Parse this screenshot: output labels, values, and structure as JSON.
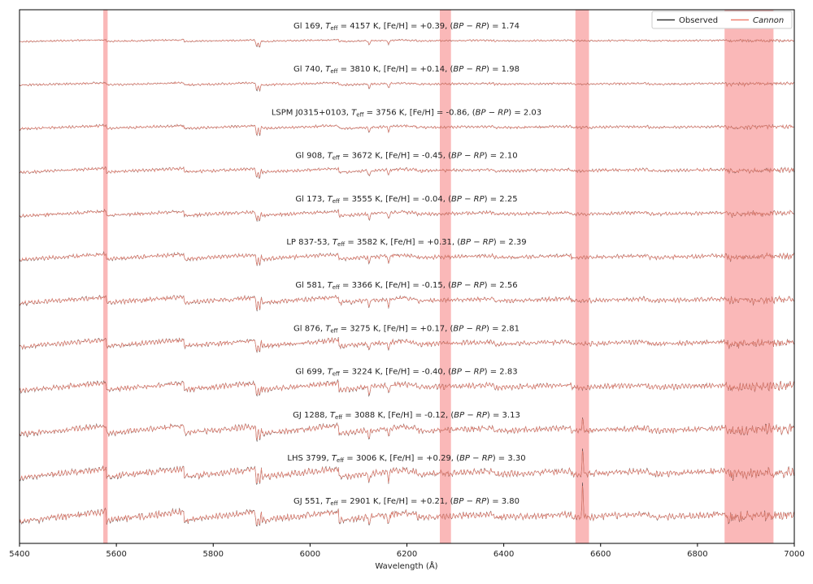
{
  "chart_data": {
    "type": "line",
    "title": "",
    "xlabel": "Wavelength (Å)",
    "ylabel": "",
    "xlim": [
      5400,
      7000
    ],
    "x_ticks": [
      5400,
      5600,
      5800,
      6000,
      6200,
      6400,
      6600,
      6800,
      7000
    ],
    "y_ticks_shown": false,
    "grid": false,
    "legend": {
      "placement": "top-right",
      "entries": [
        {
          "name": "Observed",
          "color": "#333333",
          "italic": false
        },
        {
          "name": "Cannon",
          "color": "#f08070",
          "italic": true
        }
      ]
    },
    "masked_regions": [
      [
        5573,
        5582
      ],
      [
        6268,
        6291
      ],
      [
        6548,
        6576
      ],
      [
        6856,
        6957
      ]
    ],
    "mask_color": "#f8a0a0",
    "features": {
      "absorption_lines": [
        5890,
        5896,
        6122,
        6162
      ],
      "h_alpha": 6563
    },
    "series": [
      {
        "name": "Gl 169",
        "teff": "4157",
        "feh": "+0.39",
        "bprp": "1.74",
        "halpha_emission": 0
      },
      {
        "name": "Gl 740",
        "teff": "3810",
        "feh": "+0.14",
        "bprp": "1.98",
        "halpha_emission": 0
      },
      {
        "name": "LSPM J0315+0103",
        "teff": "3756",
        "feh": "-0.86",
        "bprp": "2.03",
        "halpha_emission": 0
      },
      {
        "name": "Gl 908",
        "teff": "3672",
        "feh": "-0.45",
        "bprp": "2.10",
        "halpha_emission": 0
      },
      {
        "name": "Gl 173",
        "teff": "3555",
        "feh": "-0.04",
        "bprp": "2.25",
        "halpha_emission": 0
      },
      {
        "name": "LP 837-53",
        "teff": "3582",
        "feh": "+0.31",
        "bprp": "2.39",
        "halpha_emission": 0
      },
      {
        "name": "Gl 581",
        "teff": "3366",
        "feh": "-0.15",
        "bprp": "2.56",
        "halpha_emission": 0
      },
      {
        "name": "Gl 876",
        "teff": "3275",
        "feh": "+0.17",
        "bprp": "2.81",
        "halpha_emission": 0
      },
      {
        "name": "Gl 699",
        "teff": "3224",
        "feh": "-0.40",
        "bprp": "2.83",
        "halpha_emission": 0
      },
      {
        "name": "GJ 1288",
        "teff": "3088",
        "feh": "-0.12",
        "bprp": "3.13",
        "halpha_emission": 1
      },
      {
        "name": "LHS 3799",
        "teff": "3006",
        "feh": "+0.29",
        "bprp": "3.30",
        "halpha_emission": 1
      },
      {
        "name": "GJ 551",
        "teff": "2901",
        "feh": "+0.21",
        "bprp": "3.80",
        "halpha_emission": 1
      }
    ]
  }
}
